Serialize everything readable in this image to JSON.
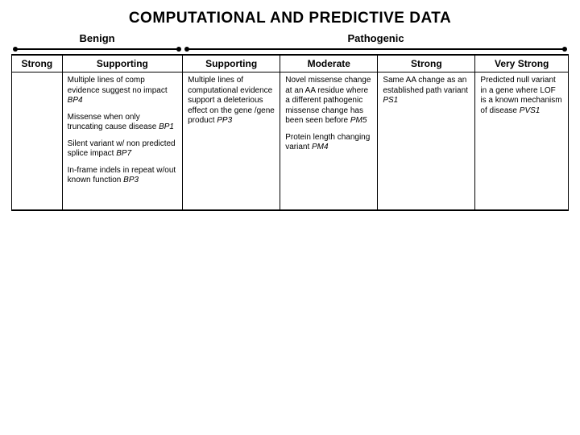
{
  "title": "COMPUTATIONAL AND PREDICTIVE DATA",
  "groups": {
    "benign": {
      "label": "Benign",
      "width_pct": 30.8
    },
    "pathogenic": {
      "label": "Pathogenic",
      "width_pct": 69.2
    }
  },
  "columns": [
    {
      "key": "b_strong",
      "header": "Strong",
      "width_pct": 9.2,
      "entries": []
    },
    {
      "key": "b_support",
      "header": "Supporting",
      "width_pct": 21.6,
      "entries": [
        {
          "text": "Multiple lines of comp evidence suggest no impact",
          "code": "BP4"
        },
        {
          "text": "Missense when only truncating cause disease",
          "code": "BP1"
        },
        {
          "text": "Silent variant w/ non predicted splice impact",
          "code": "BP7"
        },
        {
          "text": "In-frame indels in repeat w/out known function",
          "code": "BP3"
        }
      ]
    },
    {
      "key": "p_support",
      "header": "Supporting",
      "width_pct": 17.5,
      "entries": [
        {
          "text": "Multiple lines of computational evidence support a deleterious effect on the gene /gene product",
          "code": "PP3"
        }
      ]
    },
    {
      "key": "p_moderate",
      "header": "Moderate",
      "width_pct": 17.5,
      "entries": [
        {
          "text": "Novel missense change at an AA residue where a different pathogenic missense change has been seen before",
          "code": "PM5"
        },
        {
          "text": "Protein length changing variant",
          "code": "PM4"
        }
      ]
    },
    {
      "key": "p_strong",
      "header": "Strong",
      "width_pct": 17.5,
      "entries": [
        {
          "text": "Same AA change as an established path variant",
          "code": "PS1"
        }
      ]
    },
    {
      "key": "p_vstrong",
      "header": "Very Strong",
      "width_pct": 16.7,
      "entries": [
        {
          "text": "Predicted null variant in a gene where LOF is a known mechanism of disease",
          "code": "PVS1"
        }
      ]
    }
  ],
  "colors": {
    "background": "#ffffff",
    "text": "#000000",
    "border": "#000000"
  }
}
